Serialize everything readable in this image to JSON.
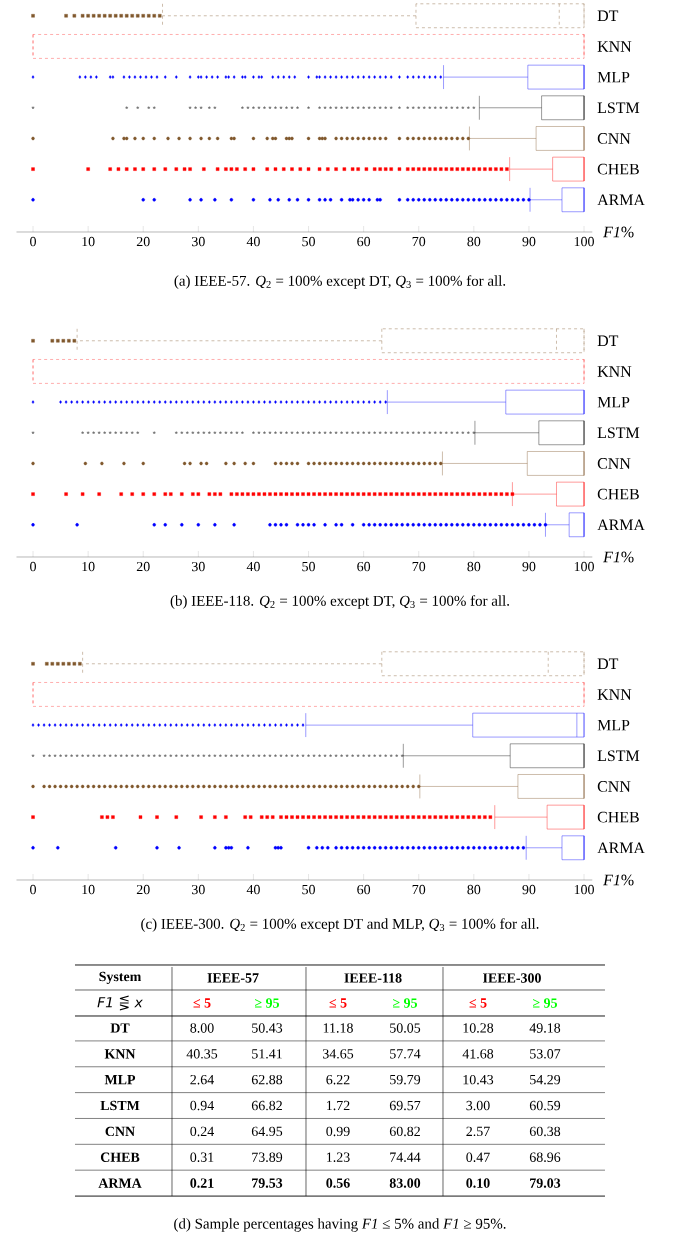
{
  "chart_data": [
    {
      "type": "box",
      "orientation": "horizontal",
      "title": "(a) IEEE-57. *Q*$_{2}$ = 100% except DT, *Q*$_{3}$ = 100% for all.",
      "xlabel": "*F1*%",
      "xlim": [
        -3,
        101.5
      ],
      "xticks": [
        0,
        10,
        20,
        30,
        40,
        50,
        60,
        70,
        80,
        90,
        100
      ],
      "categories": [
        "DT",
        "KNN",
        "MLP",
        "LSTM",
        "CNN",
        "CHEB",
        "ARMA"
      ],
      "series": [
        {
          "color": "#80582d",
          "marker": "square",
          "line_style": "dashed",
          "boxes": [
            {
              "low": 23.5,
              "q1": 69.5,
              "median": 95.5,
              "q3": 100,
              "high": 100,
              "outliers": [
                0,
                6,
                7.5,
                9,
                10,
                11,
                12,
                13,
                14,
                15,
                16,
                17,
                18,
                19,
                20,
                21,
                22,
                23
              ]
            },
            null,
            null,
            null,
            null,
            null,
            null
          ]
        },
        {
          "color": "#ff3333",
          "marker": "none",
          "line_style": "dashed",
          "boxes": [
            null,
            {
              "low": 0,
              "q1": 0,
              "median": 100,
              "q3": 100,
              "high": 100
            },
            null,
            null,
            null,
            null,
            null
          ]
        },
        {
          "color": "#0000ff",
          "marker": "diamond",
          "line_style": "solid",
          "boxes": [
            null,
            null,
            {
              "low": 74.5,
              "q1": 89.8,
              "median": 100,
              "q3": 100,
              "high": 100,
              "outliers": [
                0,
                8.5,
                9.5,
                10.5,
                11.5,
                14,
                14.5,
                16.5,
                17.5,
                18.5,
                19.5,
                20.5,
                21.5,
                22.5,
                24,
                26,
                28.5,
                30,
                30.5,
                31.5,
                32.5,
                33.5,
                35,
                35.5,
                36.5,
                38,
                38.5,
                40,
                41,
                41.5,
                43.5,
                44.5,
                45.5,
                46.5,
                47.5,
                50,
                51.5,
                52,
                53,
                54,
                55,
                56,
                57,
                58,
                59,
                60,
                61,
                62,
                63,
                64,
                65,
                66.5,
                68,
                69,
                70,
                71,
                72,
                73,
                74
              ]
            },
            null,
            null,
            null,
            null
          ]
        },
        {
          "color": "#000000",
          "marker": "star",
          "line_style": "solid",
          "boxes": [
            null,
            null,
            null,
            {
              "low": 81,
              "q1": 92.3,
              "median": 100,
              "q3": 100,
              "high": 100,
              "outliers": [
                0,
                17,
                19,
                21,
                22,
                28.5,
                29.5,
                30.5,
                32,
                33,
                38,
                39,
                40,
                41,
                42,
                43,
                44,
                45,
                46,
                47,
                48,
                50,
                52,
                53,
                54,
                55,
                56,
                57,
                58,
                59,
                60,
                61,
                62,
                63,
                64,
                65,
                66.5,
                68,
                69,
                70,
                71,
                72,
                73,
                74,
                75,
                76,
                77,
                78,
                79,
                80
              ]
            },
            null,
            null,
            null
          ]
        },
        {
          "color": "#80582d",
          "marker": "circle",
          "line_style": "solid",
          "boxes": [
            null,
            null,
            null,
            null,
            {
              "low": 79.2,
              "q1": 91.3,
              "median": 100,
              "q3": 100,
              "high": 100,
              "outliers": [
                0,
                14.5,
                16.5,
                17,
                18.5,
                20,
                22,
                24.5,
                26.5,
                28.5,
                30.5,
                32,
                33.5,
                36,
                36.5,
                40,
                42.5,
                43.5,
                44,
                46,
                46.5,
                47,
                50,
                52,
                52.5,
                53,
                55,
                56,
                57,
                58,
                59,
                60,
                61,
                62,
                63,
                64,
                66.5,
                68,
                69,
                70,
                71,
                72,
                73,
                74,
                75,
                76,
                77,
                78,
                79
              ]
            },
            null,
            null
          ]
        },
        {
          "color": "#ff0000",
          "marker": "square",
          "line_style": "solid",
          "boxes": [
            null,
            null,
            null,
            null,
            null,
            {
              "low": 86.5,
              "q1": 94.3,
              "median": 100,
              "q3": 100,
              "high": 100,
              "outliers": [
                0,
                10,
                14,
                15.5,
                17,
                18.5,
                20,
                22,
                24,
                26,
                27.5,
                28.5,
                31,
                33.5,
                35,
                36,
                37,
                38.5,
                40,
                42.5,
                44,
                45.5,
                47,
                48.5,
                50,
                52,
                53.5,
                55,
                56.5,
                58,
                59,
                60.5,
                62,
                63,
                64,
                65,
                66.5,
                68,
                69,
                70,
                71,
                72,
                73,
                74,
                75,
                76,
                77,
                78,
                79,
                80,
                81,
                82,
                83,
                84,
                85,
                86
              ]
            },
            null
          ]
        },
        {
          "color": "#0000ff",
          "marker": "circle",
          "line_style": "solid",
          "boxes": [
            null,
            null,
            null,
            null,
            null,
            null,
            {
              "low": 90.2,
              "q1": 96,
              "median": 100,
              "q3": 100,
              "high": 100,
              "outliers": [
                0,
                20,
                22,
                28.5,
                30.5,
                33,
                36,
                40,
                43,
                44.5,
                46.5,
                48,
                50,
                52,
                53,
                54,
                56,
                57.5,
                58,
                59,
                60,
                61,
                62.5,
                63,
                66.5,
                68,
                69,
                70,
                71,
                72,
                73,
                74,
                75,
                76,
                77,
                78,
                79,
                80,
                81,
                82,
                83,
                84,
                85,
                86,
                87,
                88,
                89,
                90
              ]
            }
          ]
        }
      ]
    },
    {
      "type": "box",
      "orientation": "horizontal",
      "title": "(b) IEEE-118. *Q*$_{2}$ = 100% except DT, *Q*$_{3}$ = 100% for all.",
      "xlabel": "*F1*%",
      "xlim": [
        -3,
        101.5
      ],
      "xticks": [
        0,
        10,
        20,
        30,
        40,
        50,
        60,
        70,
        80,
        90,
        100
      ],
      "categories": [
        "DT",
        "KNN",
        "MLP",
        "LSTM",
        "CNN",
        "CHEB",
        "ARMA"
      ],
      "series": [
        {
          "color": "#80582d",
          "marker": "square",
          "line_style": "dashed",
          "boxes": [
            {
              "low": 8,
              "q1": 63.3,
              "median": 95,
              "q3": 100,
              "high": 100,
              "outliers": [
                0,
                3.5,
                4.5,
                5.5,
                6.5,
                7.5
              ]
            },
            null,
            null,
            null,
            null,
            null,
            null
          ]
        },
        {
          "color": "#ff3333",
          "marker": "none",
          "line_style": "dashed",
          "boxes": [
            null,
            {
              "low": 0,
              "q1": 0,
              "median": 100,
              "q3": 100,
              "high": 100
            },
            null,
            null,
            null,
            null,
            null
          ]
        },
        {
          "color": "#0000ff",
          "marker": "diamond",
          "line_style": "solid",
          "boxes": [
            null,
            null,
            {
              "low": 64.3,
              "q1": 85.8,
              "median": 100,
              "q3": 100,
              "high": 100,
              "outliers": [
                0,
                5,
                6,
                7,
                8,
                9,
                10,
                11,
                12,
                13,
                14,
                15,
                16,
                17,
                18,
                19,
                20,
                21,
                22,
                23,
                24,
                25,
                26,
                27,
                28,
                29,
                30,
                31,
                32,
                33,
                34,
                35,
                36,
                37,
                38,
                39,
                40,
                41,
                42,
                43,
                44,
                45,
                46,
                47,
                48,
                49,
                50,
                51,
                52,
                53,
                54,
                55,
                56,
                57,
                58,
                59,
                60,
                61,
                62,
                63,
                64
              ]
            },
            null,
            null,
            null,
            null
          ]
        },
        {
          "color": "#000000",
          "marker": "star",
          "line_style": "solid",
          "boxes": [
            null,
            null,
            null,
            {
              "low": 80.2,
              "q1": 91.8,
              "median": 100,
              "q3": 100,
              "high": 100,
              "outliers": [
                0,
                9,
                10,
                11,
                12,
                13,
                14,
                15,
                16,
                17,
                18,
                19,
                22,
                26,
                27,
                28,
                29,
                30,
                31,
                32,
                33,
                34,
                35,
                36,
                37,
                38,
                40,
                41,
                42,
                43,
                44,
                45,
                46,
                47,
                48,
                49,
                50,
                51,
                52,
                53,
                54,
                55,
                56,
                57,
                58,
                59,
                60,
                61,
                62,
                63,
                64,
                65,
                66,
                67,
                68,
                69,
                70,
                71,
                72,
                73,
                74,
                75,
                76,
                77,
                78,
                79,
                80
              ]
            },
            null,
            null,
            null
          ]
        },
        {
          "color": "#80582d",
          "marker": "circle",
          "line_style": "solid",
          "boxes": [
            null,
            null,
            null,
            null,
            {
              "low": 74.3,
              "q1": 89.7,
              "median": 100,
              "q3": 100,
              "high": 100,
              "outliers": [
                0,
                9.5,
                12.5,
                16.5,
                20,
                27.5,
                28.5,
                30.5,
                31.5,
                35,
                36.5,
                38.5,
                40,
                44,
                45,
                46,
                47,
                48,
                50,
                51,
                52,
                53,
                54,
                55,
                56,
                57,
                58,
                59,
                60,
                61,
                62,
                63,
                64,
                65,
                66,
                67,
                68,
                69,
                70,
                71,
                72,
                73,
                74
              ]
            },
            null,
            null
          ]
        },
        {
          "color": "#ff0000",
          "marker": "square",
          "line_style": "solid",
          "boxes": [
            null,
            null,
            null,
            null,
            null,
            {
              "low": 87,
              "q1": 95,
              "median": 100,
              "q3": 100,
              "high": 100,
              "outliers": [
                0,
                6,
                9,
                12,
                16,
                18,
                20,
                22,
                24,
                25,
                27,
                29,
                30,
                32,
                33,
                34,
                36,
                37,
                38,
                39,
                40,
                41,
                42,
                43,
                44,
                45,
                46,
                47,
                48,
                49,
                50,
                51,
                52,
                53,
                54,
                55,
                56,
                57,
                58,
                59,
                60,
                61,
                62,
                63,
                64,
                65,
                66,
                67,
                68,
                69,
                70,
                71,
                72,
                73,
                74,
                75,
                76,
                77,
                78,
                79,
                80,
                81,
                82,
                83,
                84,
                85,
                86,
                87
              ]
            },
            null
          ]
        },
        {
          "color": "#0000ff",
          "marker": "circle",
          "line_style": "solid",
          "boxes": [
            null,
            null,
            null,
            null,
            null,
            null,
            {
              "low": 93,
              "q1": 97.3,
              "median": 100,
              "q3": 100,
              "high": 100,
              "outliers": [
                0,
                8,
                22,
                24,
                27,
                30,
                33,
                36.5,
                43,
                44,
                45,
                46,
                48,
                49,
                50,
                51,
                53,
                55,
                56,
                58,
                60,
                61,
                62,
                63,
                64,
                65,
                66,
                67,
                68,
                69,
                70,
                71,
                72,
                73,
                74,
                75,
                76,
                77,
                78,
                79,
                80,
                81,
                82,
                83,
                84,
                85,
                86,
                87,
                88,
                89,
                90,
                91,
                92,
                93
              ]
            }
          ]
        }
      ]
    },
    {
      "type": "box",
      "orientation": "horizontal",
      "title": "(c) IEEE-300. *Q*$_{2}$ = 100% except DT and MLP, *Q*$_{3}$ = 100% for all.",
      "xlabel": "*F1*%",
      "xlim": [
        -3,
        101.5
      ],
      "xticks": [
        0,
        10,
        20,
        30,
        40,
        50,
        60,
        70,
        80,
        90,
        100
      ],
      "categories": [
        "DT",
        "KNN",
        "MLP",
        "LSTM",
        "CNN",
        "CHEB",
        "ARMA"
      ],
      "series": [
        {
          "color": "#80582d",
          "marker": "square",
          "line_style": "dashed",
          "boxes": [
            {
              "low": 9,
              "q1": 63.3,
              "median": 93.5,
              "q3": 100,
              "high": 100,
              "outliers": [
                0,
                2.5,
                3.5,
                4.5,
                5.5,
                6.5,
                7.5,
                8.5
              ]
            },
            null,
            null,
            null,
            null,
            null,
            null
          ]
        },
        {
          "color": "#ff3333",
          "marker": "none",
          "line_style": "dashed",
          "boxes": [
            null,
            {
              "low": 0,
              "q1": 0,
              "median": 100,
              "q3": 100,
              "high": 100
            },
            null,
            null,
            null,
            null,
            null
          ]
        },
        {
          "color": "#0000ff",
          "marker": "diamond",
          "line_style": "solid",
          "boxes": [
            null,
            null,
            {
              "low": 49.5,
              "q1": 79.8,
              "median": 98.7,
              "q3": 100,
              "high": 100,
              "outliers": [
                0,
                1,
                2,
                3,
                4,
                5,
                6,
                7,
                8,
                9,
                10,
                11,
                12,
                13,
                14,
                15,
                16,
                17,
                18,
                19,
                20,
                21,
                22,
                23,
                24,
                25,
                26,
                27,
                28,
                29,
                30,
                31,
                32,
                33,
                34,
                35,
                36,
                37,
                38,
                39,
                40,
                41,
                42,
                43,
                44,
                45,
                46,
                47,
                48,
                49
              ]
            },
            null,
            null,
            null,
            null
          ]
        },
        {
          "color": "#000000",
          "marker": "star",
          "line_style": "solid",
          "boxes": [
            null,
            null,
            null,
            {
              "low": 67.2,
              "q1": 86.6,
              "median": 100,
              "q3": 100,
              "high": 100,
              "outliers": [
                0,
                2,
                3,
                4,
                5,
                6,
                7,
                8,
                9,
                10,
                11,
                12,
                13,
                14,
                15,
                16,
                17,
                18,
                19,
                20,
                21,
                22,
                23,
                24,
                25,
                26,
                27,
                28,
                29,
                30,
                31,
                32,
                33,
                34,
                35,
                36,
                37,
                38,
                39,
                40,
                41,
                42,
                43,
                44,
                45,
                46,
                47,
                48,
                49,
                50,
                51,
                52,
                53,
                54,
                55,
                56,
                57,
                58,
                59,
                60,
                61,
                62,
                63,
                64,
                65,
                66,
                67
              ]
            },
            null,
            null,
            null
          ]
        },
        {
          "color": "#80582d",
          "marker": "circle",
          "line_style": "solid",
          "boxes": [
            null,
            null,
            null,
            null,
            {
              "low": 70.2,
              "q1": 88,
              "median": 100,
              "q3": 100,
              "high": 100,
              "outliers": [
                0,
                2,
                3,
                4,
                5,
                6,
                7,
                8,
                9,
                10,
                11,
                12,
                13,
                14,
                15,
                16,
                17,
                18,
                19,
                20,
                21,
                22,
                23,
                24,
                25,
                26,
                27,
                28,
                29,
                30,
                31,
                32,
                33,
                34,
                35,
                36,
                37,
                38,
                39,
                40,
                41,
                42,
                43,
                44,
                45,
                46,
                47,
                48,
                49,
                50,
                51,
                52,
                53,
                54,
                55,
                56,
                57,
                58,
                59,
                60,
                61,
                62,
                63,
                64,
                65,
                66,
                67,
                68,
                69,
                70
              ]
            },
            null,
            null
          ]
        },
        {
          "color": "#ff0000",
          "marker": "square",
          "line_style": "solid",
          "boxes": [
            null,
            null,
            null,
            null,
            null,
            {
              "low": 83.8,
              "q1": 93.3,
              "median": 100,
              "q3": 100,
              "high": 100,
              "outliers": [
                0,
                12.5,
                13.5,
                14.5,
                19.5,
                22.5,
                26,
                30.5,
                33,
                35,
                38.5,
                39.5,
                41.5,
                42.5,
                43.5,
                45,
                46,
                47,
                48,
                49,
                50,
                51,
                52,
                53,
                54,
                55,
                56,
                57,
                58,
                59,
                60,
                61,
                62,
                63,
                64,
                65,
                66,
                67,
                68,
                69,
                70,
                71,
                72,
                73,
                74,
                75,
                76,
                77,
                78,
                79,
                80,
                81,
                82,
                83
              ]
            },
            null
          ]
        },
        {
          "color": "#0000ff",
          "marker": "circle",
          "line_style": "solid",
          "boxes": [
            null,
            null,
            null,
            null,
            null,
            null,
            {
              "low": 89.5,
              "q1": 96,
              "median": 100,
              "q3": 100,
              "high": 100,
              "outliers": [
                0,
                4.5,
                15,
                22.5,
                26.5,
                33,
                35,
                35.5,
                36,
                39,
                44,
                44.5,
                45,
                50,
                51.5,
                52.5,
                53.5,
                55,
                56,
                57,
                58,
                59,
                60,
                61,
                62,
                63,
                64,
                65,
                66,
                67,
                68,
                69,
                70,
                71,
                72,
                73,
                74,
                75,
                76,
                77,
                78,
                79,
                80,
                81,
                82,
                83,
                84,
                85,
                86,
                87,
                88,
                89
              ]
            }
          ]
        }
      ]
    },
    {
      "type": "other",
      "title": "(d) Sample percentages having *F1* ≤ 5% and *F1* ≥ 95%.",
      "annotations": [
        "System",
        "IEEE-57",
        "IEEE-118",
        "IEEE-300",
        "*F1* ⋚ *x*",
        "≤ 5",
        "≥ 95",
        "≤ 5",
        "≥ 95",
        "≤ 5",
        "≥ 95",
        "DT",
        "8.00",
        "50.43",
        "11.18",
        "50.05",
        "10.28",
        "49.18",
        "KNN",
        "40.35",
        "51.41",
        "34.65",
        "57.74",
        "41.68",
        "53.07",
        "MLP",
        "2.64",
        "62.88",
        "6.22",
        "59.79",
        "10.43",
        "54.29",
        "LSTM",
        "0.94",
        "66.82",
        "1.72",
        "69.57",
        "3.00",
        "60.59",
        "CNN",
        "0.24",
        "64.95",
        "0.99",
        "60.82",
        "2.57",
        "60.38",
        "CHEB",
        "0.31",
        "73.89",
        "1.23",
        "74.44",
        "0.47",
        "68.96",
        "ARMA",
        "0.21",
        "79.53",
        "0.56",
        "83.00",
        "0.10",
        "79.03"
      ]
    }
  ]
}
